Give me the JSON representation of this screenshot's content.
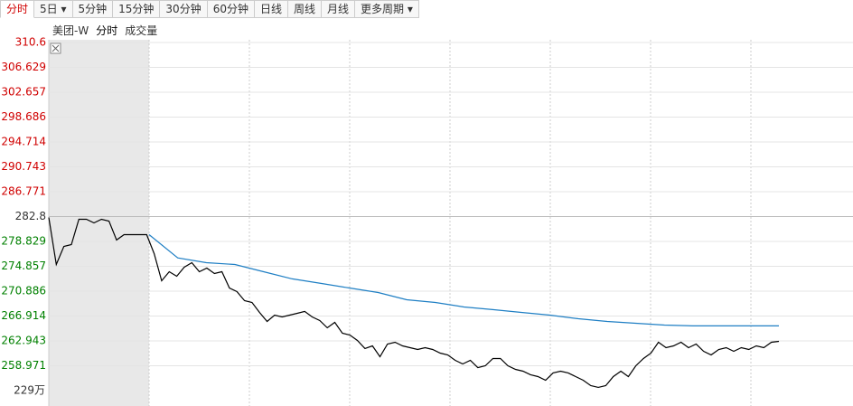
{
  "tabs": [
    "分时",
    "5日",
    "5分钟",
    "15分钟",
    "30分钟",
    "60分钟",
    "日线",
    "周线",
    "月线",
    "更多周期"
  ],
  "legend": [
    "美团-W",
    "分时",
    "成交量"
  ],
  "volume_label": "229万",
  "chart_data": {
    "type": "line",
    "ylim": [
      252.54,
      310.6
    ],
    "yticks": [
      310.6,
      306.629,
      302.657,
      298.686,
      294.714,
      290.743,
      286.771,
      282.8,
      278.829,
      274.857,
      270.886,
      266.914,
      262.943,
      258.971
    ],
    "prev_close": 282.8,
    "up_color": "#d00000",
    "down_color": "#008000",
    "flat_color": "#333333",
    "grid": true,
    "series": [
      {
        "color": "#000000",
        "values": [
          282.66,
          275.15,
          278.03,
          278.32,
          282.37,
          282.37,
          281.79,
          282.37,
          282.08,
          279.05,
          279.91,
          279.91,
          279.91,
          279.91,
          276.88,
          272.55,
          273.99,
          273.27,
          274.71,
          275.43,
          273.99,
          274.57,
          273.7,
          273.99,
          271.39,
          270.81,
          269.37,
          269.08,
          267.49,
          266.05,
          267.06,
          266.77,
          267.06,
          267.35,
          267.64,
          266.77,
          266.19,
          265.04,
          265.9,
          264.17,
          263.88,
          263.01,
          261.72,
          262.14,
          260.41,
          262.43,
          262.72,
          262.14,
          261.86,
          261.57,
          261.86,
          261.57,
          260.99,
          260.7,
          259.83,
          259.26,
          259.83,
          258.67,
          258.96,
          260.12,
          260.12,
          258.96,
          258.39,
          258.1,
          257.53,
          257.24,
          256.66,
          257.82,
          258.1,
          257.82,
          257.24,
          256.66,
          255.79,
          255.51,
          255.79,
          257.24,
          258.1,
          257.24,
          258.96,
          260.12,
          260.99,
          262.72,
          261.86,
          262.14,
          262.72,
          261.86,
          262.43,
          261.28,
          260.7,
          261.57,
          261.86,
          261.28,
          261.86,
          261.57,
          262.14,
          261.86,
          262.72,
          262.86
        ]
      },
      {
        "color": "#1f7fc4",
        "values": [
          279.91,
          276.2,
          275.43,
          275.14,
          273.99,
          272.84,
          272.12,
          271.39,
          270.67,
          269.51,
          269.08,
          268.36,
          267.93,
          267.49,
          267.06,
          266.48,
          266.05,
          265.76,
          265.47,
          265.33,
          265.33,
          265.33,
          265.33
        ]
      }
    ]
  }
}
